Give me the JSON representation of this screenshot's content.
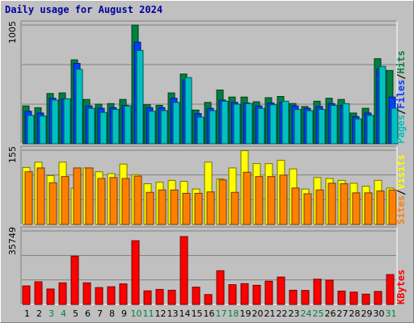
{
  "chart_data": {
    "type": "bar",
    "title": "Daily usage for August 2024",
    "categories": [
      "1",
      "2",
      "3",
      "4",
      "5",
      "6",
      "7",
      "8",
      "9",
      "10",
      "11",
      "12",
      "13",
      "14",
      "15",
      "16",
      "17",
      "18",
      "19",
      "20",
      "21",
      "22",
      "23",
      "24",
      "25",
      "26",
      "27",
      "28",
      "29",
      "30",
      "31"
    ],
    "weekend_days": [
      "3",
      "4",
      "10",
      "11",
      "17",
      "18",
      "24",
      "25",
      "31"
    ],
    "panels": [
      {
        "name": "hits-panel",
        "y_max_label": "1005",
        "ylim": [
          0,
          1005
        ],
        "side_labels": [
          "Pages",
          "/",
          "Files",
          "/",
          "Hits"
        ],
        "side_colors": [
          "#00c0c0",
          "#000000",
          "#0040ff",
          "#000000",
          "#008040"
        ],
        "series": [
          {
            "name": "Hits",
            "color": "#008040",
            "values": [
              320,
              305,
              425,
              430,
              710,
              375,
              335,
              340,
              375,
              1005,
              330,
              325,
              430,
              590,
              285,
              350,
              455,
              395,
              395,
              355,
              390,
              400,
              340,
              315,
              360,
              385,
              375,
              260,
              300,
              720,
              620
            ]
          },
          {
            "name": "Files",
            "color": "#0040ff",
            "values": [
              275,
              260,
              385,
              380,
              680,
              320,
              300,
              305,
              325,
              860,
              305,
              305,
              385,
              540,
              255,
              300,
              370,
              350,
              345,
              320,
              345,
              350,
              320,
              300,
              315,
              340,
              325,
              230,
              260,
              635,
              395
            ]
          },
          {
            "name": "Pages",
            "color": "#00c0c0",
            "values": [
              240,
              235,
              370,
              380,
              630,
              300,
              265,
              290,
              320,
              790,
              275,
              280,
              350,
              560,
              225,
              280,
              360,
              335,
              340,
              300,
              330,
              360,
              290,
              280,
              290,
              325,
              340,
              210,
              240,
              655,
              300
            ]
          }
        ]
      },
      {
        "name": "visits-panel",
        "y_max_label": "155",
        "ylim": [
          0,
          155
        ],
        "side_labels": [
          "Sites",
          "/",
          "Visits"
        ],
        "side_colors": [
          "#ff8000",
          "#000000",
          "#ffff00"
        ],
        "series": [
          {
            "name": "Visits",
            "color": "#ffff00",
            "values": [
              119,
              130,
              102,
              130,
              76,
              118,
              110,
              106,
              126,
              104,
              85,
              88,
              92,
              90,
              74,
              130,
              95,
              118,
              154,
              127,
              127,
              134,
              116,
              74,
              98,
              96,
              92,
              86,
              80,
              92,
              76
            ]
          },
          {
            "name": "Sites",
            "color": "#ff8000",
            "values": [
              110,
              118,
              87,
              100,
              118,
              118,
              96,
              98,
              96,
              101,
              67,
              72,
              72,
              65,
              65,
              68,
              93,
              67,
              109,
              100,
              100,
              103,
              76,
              64,
              72,
              86,
              85,
              66,
              66,
              70,
              72
            ]
          }
        ]
      },
      {
        "name": "kbytes-panel",
        "y_max_label": "35749",
        "ylim": [
          0,
          35749
        ],
        "side_labels": [
          "KBytes"
        ],
        "side_colors": [
          "#ff0000"
        ],
        "series": [
          {
            "name": "KBytes",
            "color": "#ff0000",
            "values": [
              9000,
              11000,
              7500,
              10500,
              23500,
              10500,
              8200,
              8600,
              10000,
              31000,
              6600,
              7300,
              6900,
              33000,
              8400,
              4800,
              16400,
              9600,
              10100,
              9300,
              11300,
              13300,
              6900,
              6800,
              12300,
              11800,
              6500,
              6000,
              5000,
              6300,
              14500
            ]
          }
        ]
      }
    ]
  }
}
